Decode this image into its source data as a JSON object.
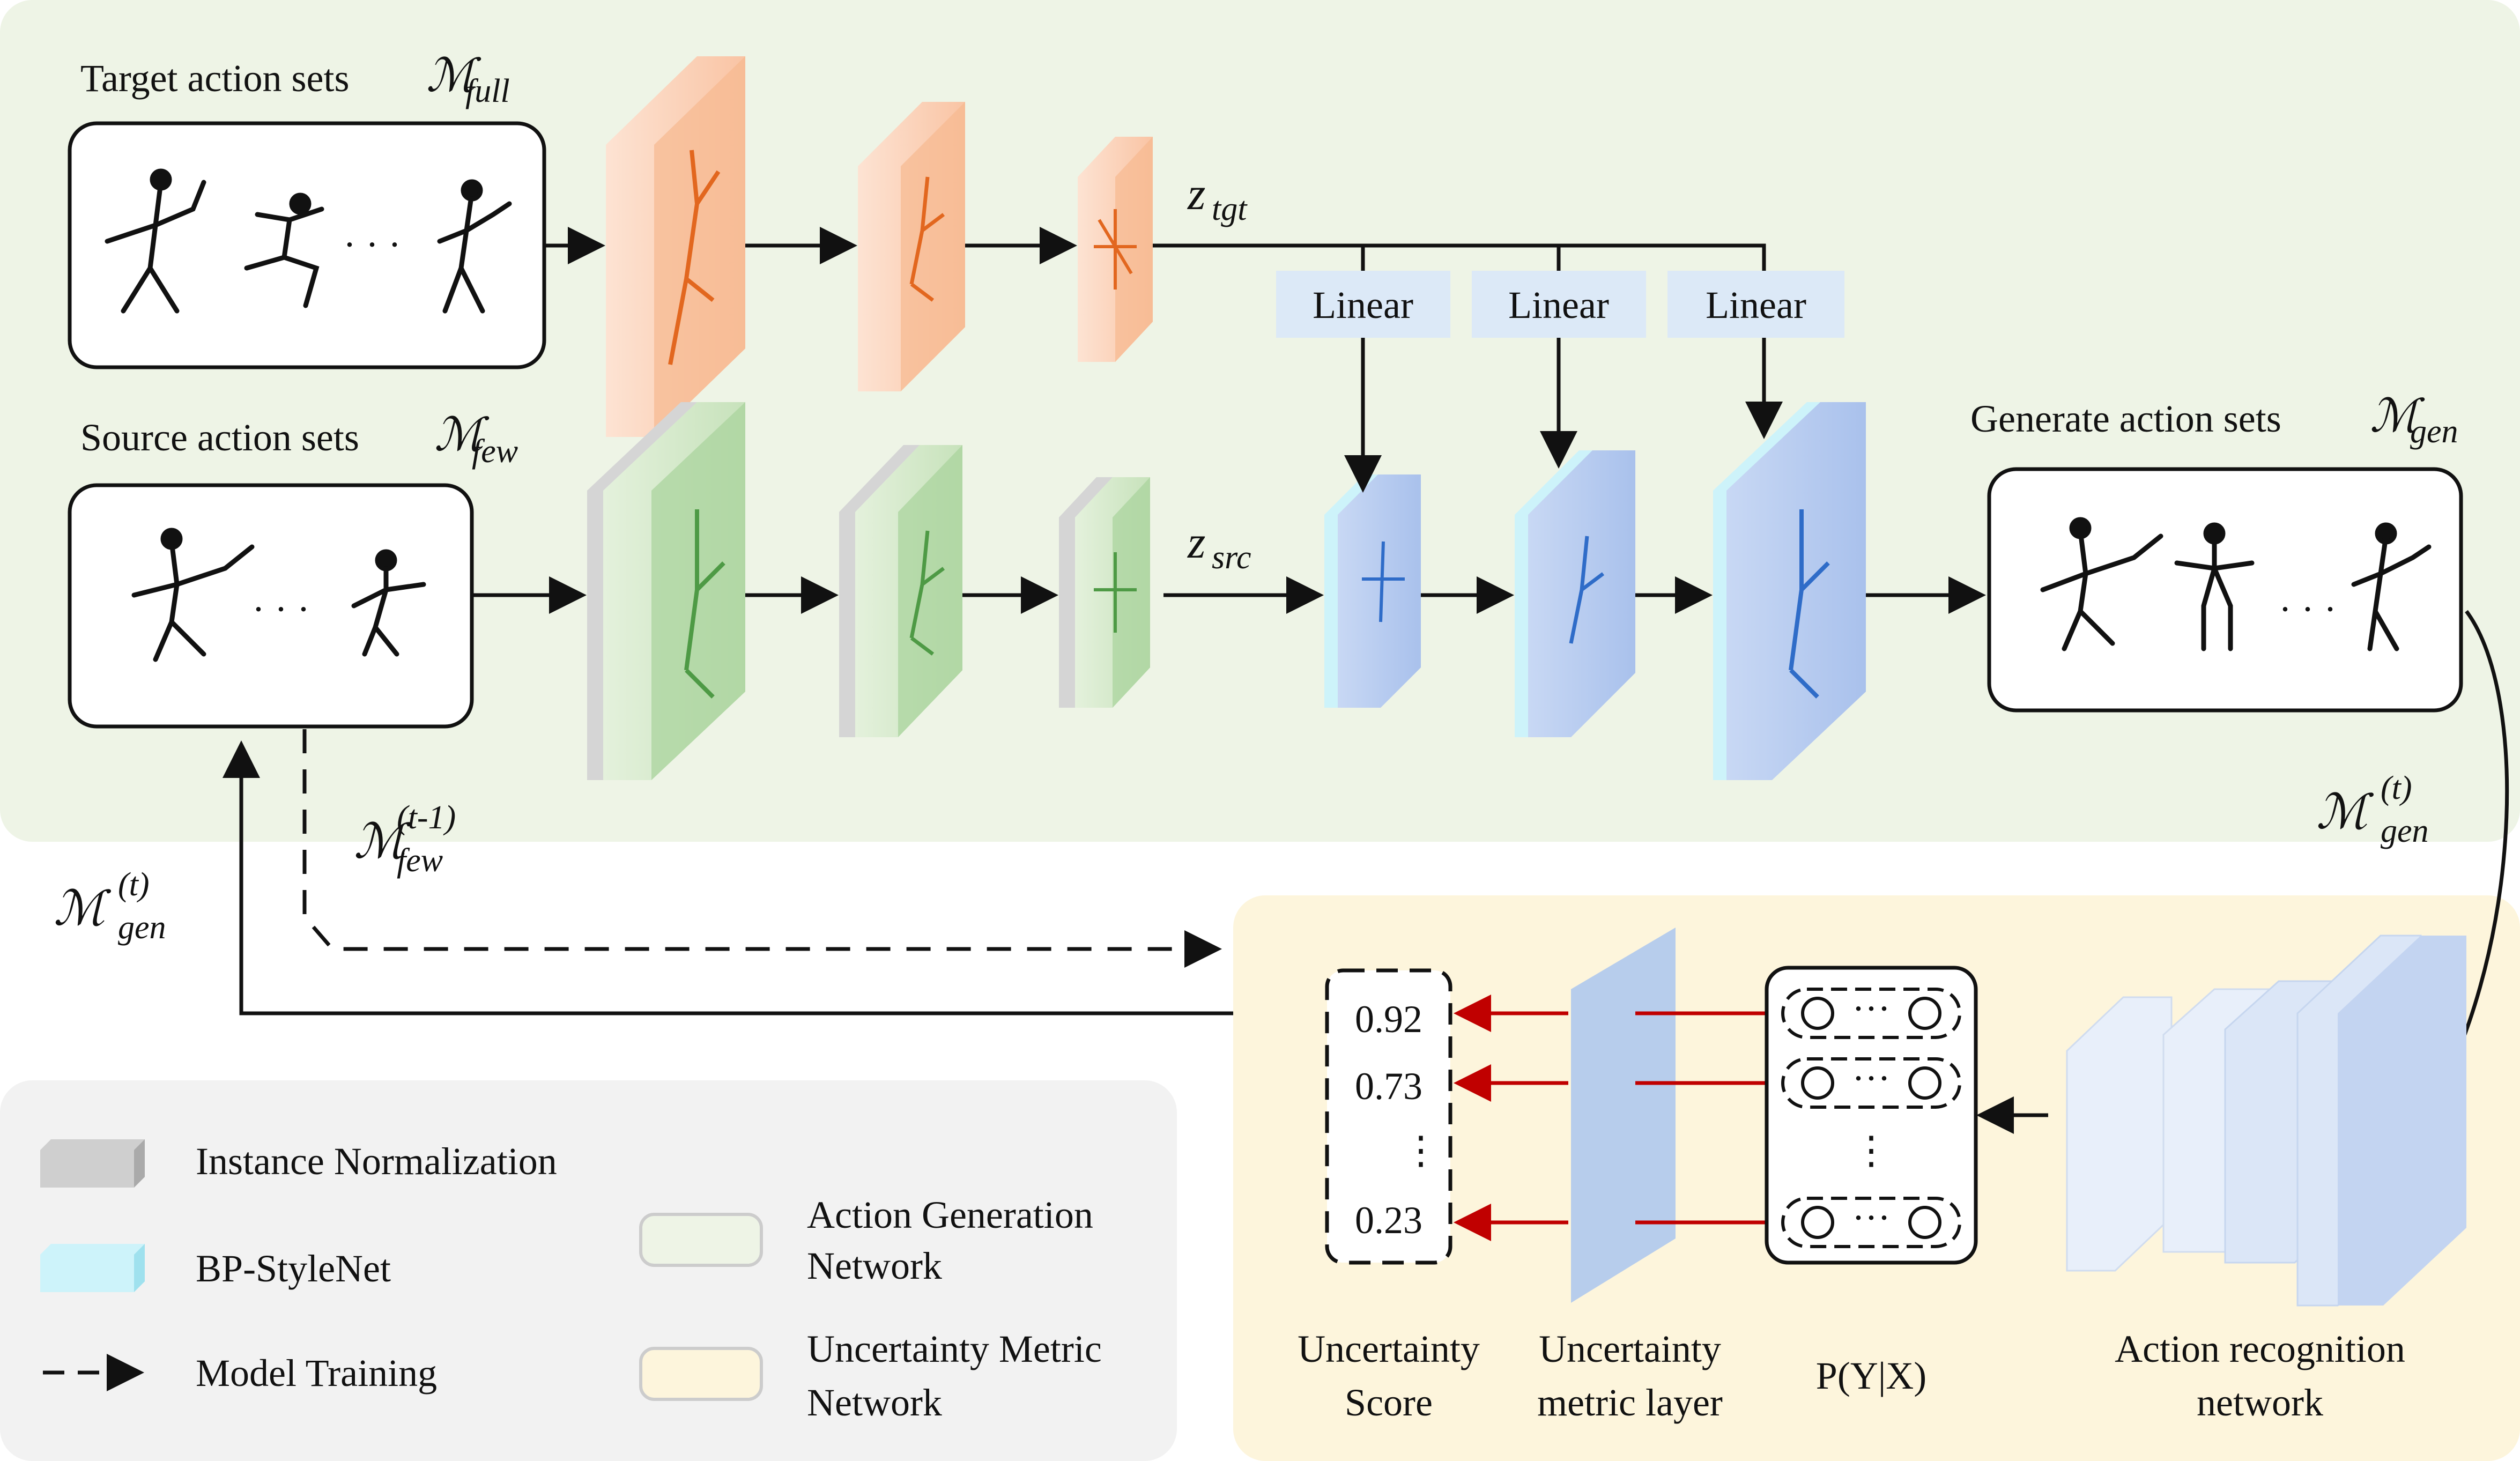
{
  "colors": {
    "green_panel": "#eef4e6",
    "yellow_panel": "#fdf5dc",
    "legend_panel": "#f2f2f2",
    "orange": "#f08a4b",
    "green": "#74b26a",
    "blue": "#5b8ee0",
    "linear_box": "#dce9f7",
    "red_arrow": "#c00000"
  },
  "labels": {
    "target_sets": "Target action sets",
    "target_math": "ℳ",
    "target_sub": "full",
    "source_sets": "Source action sets",
    "source_math": "ℳ",
    "source_sub": "few",
    "generate_sets": "Generate action sets",
    "generate_math": "ℳ",
    "generate_sub": "gen",
    "z_tgt": "z",
    "z_tgt_sub": "tgt",
    "z_src": "z",
    "z_src_sub": "src",
    "linear": [
      "Linear",
      "Linear",
      "Linear"
    ],
    "m_few_prev_main": "ℳ",
    "m_few_prev_sup": "(t-1)",
    "m_few_prev_sub": "few",
    "m_gen_t_left_main": "ℳ",
    "m_gen_t_left_sup": "(t)",
    "m_gen_t_left_sub": "gen",
    "m_gen_t_right_main": "ℳ",
    "m_gen_t_right_sup": "(t)",
    "m_gen_t_right_sub": "gen",
    "ellipsis": "· · ·"
  },
  "scores": [
    "0.92",
    "0.73",
    "⋮",
    "0.23"
  ],
  "uncertainty": {
    "score_title": [
      "Uncertainty",
      "Score"
    ],
    "layer_title": [
      "Uncertainty",
      "metric layer"
    ],
    "prob_title": "P(Y|X)",
    "recog_title": [
      "Action recognition",
      "network"
    ],
    "prob_dots": "···",
    "prob_vdots": "⋮"
  },
  "legend": {
    "instance_norm": "Instance Normalization",
    "bp_stylenet": "BP-StyleNet",
    "model_training": "Model Training",
    "action_gen": [
      "Action Generation",
      "Network"
    ],
    "uncertainty_net": [
      "Uncertainty Metric",
      "Network"
    ]
  }
}
